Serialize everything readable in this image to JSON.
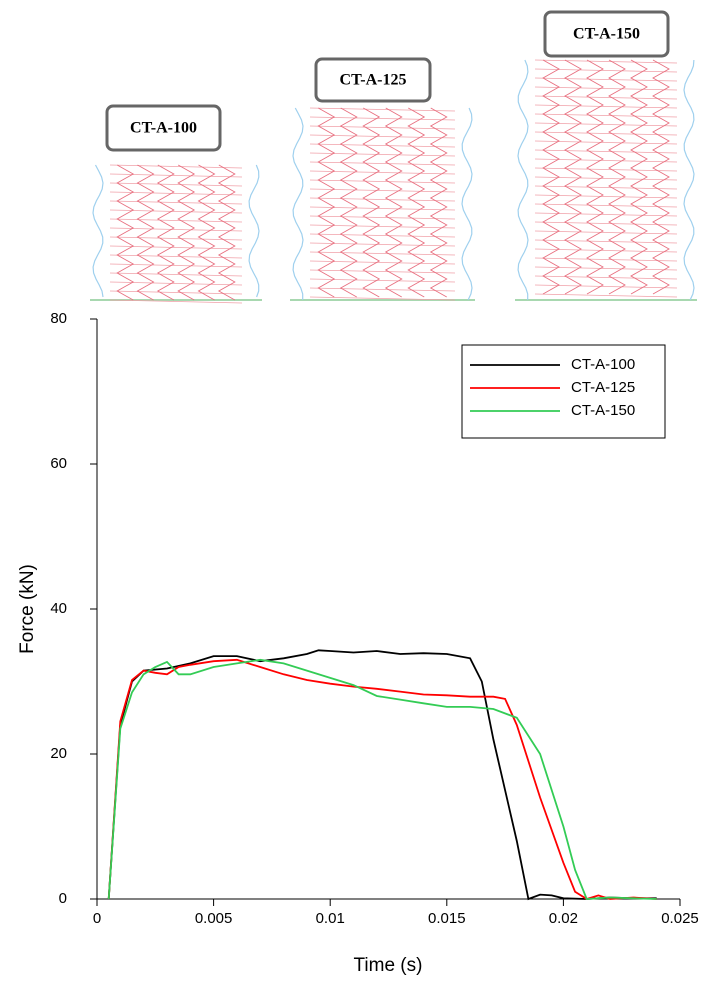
{
  "illustrations": [
    {
      "label": "CT-A-100"
    },
    {
      "label": "CT-A-125"
    },
    {
      "label": "CT-A-150"
    }
  ],
  "chart_data": {
    "type": "line",
    "x_label": "Time (s)",
    "y_label": "Force (kN)",
    "xlim": [
      0,
      0.025
    ],
    "xticks": [
      0,
      0.005,
      0.01,
      0.015,
      0.02,
      0.025
    ],
    "ylim": [
      0,
      80
    ],
    "yticks": [
      0,
      20,
      40,
      60,
      80
    ],
    "grid": false,
    "legend": "upper right",
    "series": [
      {
        "name": "CT-A-100",
        "color": "#000000",
        "x": [
          0.0005,
          0.001,
          0.0015,
          0.002,
          0.003,
          0.004,
          0.005,
          0.006,
          0.007,
          0.008,
          0.009,
          0.0095,
          0.01,
          0.011,
          0.012,
          0.013,
          0.014,
          0.015,
          0.016,
          0.0165,
          0.017,
          0.018,
          0.0185,
          0.019,
          0.0195,
          0.02,
          0.021,
          0.022,
          0.023,
          0.024
        ],
        "values": [
          0,
          24,
          30,
          31.5,
          31.8,
          32.5,
          33.5,
          33.5,
          32.8,
          33.2,
          33.8,
          34.3,
          34.2,
          34,
          34.2,
          33.8,
          33.9,
          33.8,
          33.2,
          30,
          22,
          8,
          0,
          0.6,
          0.5,
          0.1,
          0,
          0.2,
          0.1,
          0.1
        ]
      },
      {
        "name": "CT-A-125",
        "color": "#ff0000",
        "x": [
          0.0005,
          0.001,
          0.0015,
          0.002,
          0.0025,
          0.003,
          0.0035,
          0.004,
          0.005,
          0.006,
          0.007,
          0.008,
          0.009,
          0.01,
          0.011,
          0.012,
          0.013,
          0.014,
          0.015,
          0.016,
          0.017,
          0.0175,
          0.018,
          0.019,
          0.02,
          0.0205,
          0.021,
          0.0215,
          0.022,
          0.023,
          0.024
        ],
        "values": [
          0,
          24.5,
          30.2,
          31.5,
          31.2,
          31,
          32,
          32.3,
          32.8,
          33,
          32,
          31,
          30.2,
          29.7,
          29.3,
          29,
          28.6,
          28.2,
          28.1,
          27.9,
          27.9,
          27.6,
          24,
          14,
          5,
          1,
          0,
          0.5,
          0,
          0.2,
          0
        ]
      },
      {
        "name": "CT-A-150",
        "color": "#33cc55",
        "x": [
          0.0005,
          0.001,
          0.0015,
          0.002,
          0.0025,
          0.003,
          0.0035,
          0.004,
          0.005,
          0.006,
          0.007,
          0.008,
          0.009,
          0.01,
          0.011,
          0.012,
          0.013,
          0.014,
          0.015,
          0.016,
          0.017,
          0.018,
          0.019,
          0.02,
          0.0205,
          0.021,
          0.022,
          0.023,
          0.024
        ],
        "values": [
          0,
          23.5,
          28.5,
          31,
          32,
          32.7,
          31,
          31,
          32,
          32.5,
          33,
          32.5,
          31.5,
          30.5,
          29.5,
          28,
          27.5,
          27,
          26.5,
          26.5,
          26.2,
          25,
          20,
          10,
          4,
          0,
          0.2,
          0.1,
          0
        ]
      }
    ]
  }
}
